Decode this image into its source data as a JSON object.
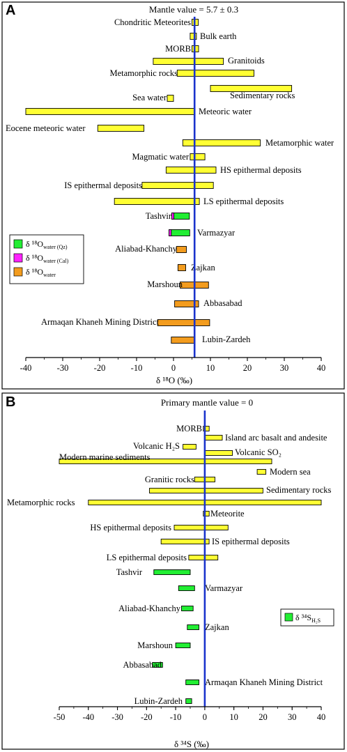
{
  "colors": {
    "literature": "#ffff33",
    "quartz": "#22ee33",
    "calcite": "#ff22ff",
    "water": "#f39c1e",
    "mantle_line": "#1a33cc"
  },
  "chart_data": [
    {
      "id": "A",
      "type": "bar",
      "orientation": "horizontal-range",
      "panel_label": "A",
      "title": "Mantle value = 5.7 ± 0.3",
      "xlabel": "δ ¹⁸O (‰)",
      "xlim": [
        -40,
        40
      ],
      "xticks": [
        -40,
        -30,
        -20,
        -10,
        0,
        10,
        20,
        30,
        40
      ],
      "reference_line": 5.7,
      "legend_position": "left",
      "legend": [
        {
          "key": "quartz",
          "base": "δ ¹⁸O",
          "sub": "water (Qz)"
        },
        {
          "key": "calcite",
          "base": "δ ¹⁸O",
          "sub": "water (Cal)"
        },
        {
          "key": "water",
          "base": "δ ¹⁸O",
          "sub": "water"
        }
      ],
      "series": [
        {
          "name": "Chondritic Meteorites",
          "key": "literature",
          "min": 5.0,
          "max": 6.7
        },
        {
          "name": "Bulk earth",
          "key": "literature",
          "min": 4.5,
          "max": 6.2
        },
        {
          "name": "MORB",
          "key": "literature",
          "min": 5.0,
          "max": 6.8
        },
        {
          "name": "Granitoids",
          "key": "literature",
          "min": -5.5,
          "max": 13.5
        },
        {
          "name": "Metamorphic rocks",
          "key": "literature",
          "min": 1.0,
          "max": 21.8
        },
        {
          "name": "Sedimentary rocks",
          "key": "literature",
          "min": 10.0,
          "max": 32.0
        },
        {
          "name": "Sea water",
          "key": "literature",
          "min": -1.7,
          "max": 0.0
        },
        {
          "name": "Meteoric water",
          "key": "literature",
          "min": -40.0,
          "max": 5.7
        },
        {
          "name": "Eocene meteoric water",
          "key": "literature",
          "min": -20.5,
          "max": -8.0
        },
        {
          "name": "Metamorphic water",
          "key": "literature",
          "min": 2.5,
          "max": 23.5
        },
        {
          "name": "Magmatic water",
          "key": "literature",
          "min": 4.5,
          "max": 8.5
        },
        {
          "name": "HS epithermal deposits",
          "key": "literature",
          "min": -2.0,
          "max": 11.5
        },
        {
          "name": "IS epithermal deposits",
          "key": "literature",
          "min": -8.5,
          "max": 10.8
        },
        {
          "name": "LS epithermal deposits",
          "key": "literature",
          "min": -16.0,
          "max": 7.0
        },
        {
          "name": "Tashvir",
          "key": "quartz",
          "min": -0.5,
          "max": 4.3,
          "cal_min": -0.5,
          "cal_max": 0.1
        },
        {
          "name": "Varmazyar",
          "key": "quartz",
          "min": -1.2,
          "max": 4.4,
          "cal_min": -1.2,
          "cal_max": -0.6
        },
        {
          "name": "Aliabad-Khanchy",
          "key": "water",
          "min": 0.8,
          "max": 3.5
        },
        {
          "name": "Zajkan",
          "key": "water",
          "min": 1.2,
          "max": 3.3
        },
        {
          "name": "Marshoun",
          "key": "water",
          "min": 1.8,
          "max": 9.5
        },
        {
          "name": "Abbasabad",
          "key": "water",
          "min": 0.3,
          "max": 6.8
        },
        {
          "name": "Armaqan Khaneh Mining District",
          "key": "water",
          "min": -4.3,
          "max": 9.8
        },
        {
          "name": "Lubin-Zardeh",
          "key": "water",
          "min": -0.6,
          "max": 5.7
        }
      ]
    },
    {
      "id": "B",
      "type": "bar",
      "orientation": "horizontal-range",
      "panel_label": "B",
      "title": "Primary mantle value = 0",
      "xlabel": "δ ³⁴S (‰)",
      "xlim": [
        -50,
        40
      ],
      "xticks": [
        -50,
        -40,
        -30,
        -20,
        -10,
        0,
        10,
        20,
        30,
        40
      ],
      "reference_line": 0,
      "legend_position": "right",
      "legend": [
        {
          "key": "quartz",
          "base": "δ ³⁴S",
          "sub": "H₂S"
        }
      ],
      "series": [
        {
          "name": "MORB",
          "key": "literature",
          "min": -0.5,
          "max": 1.5
        },
        {
          "name": "Island arc basalt and andesite",
          "key": "literature",
          "min": 0.0,
          "max": 6.0
        },
        {
          "name": "Volcanic H₂S",
          "key": "literature",
          "min": -7.5,
          "max": -3.0
        },
        {
          "name": "Volcanic SO₂",
          "key": "literature",
          "min": 0.0,
          "max": 9.5
        },
        {
          "name": "Modern marine sediments",
          "key": "literature",
          "min": -50.0,
          "max": 23.0
        },
        {
          "name": "Modern sea",
          "key": "literature",
          "min": 18.0,
          "max": 21.0
        },
        {
          "name": "Granitic rocks",
          "key": "literature",
          "min": -3.5,
          "max": 3.5
        },
        {
          "name": "Sedimentary rocks",
          "key": "literature",
          "min": -19.0,
          "max": 20.0
        },
        {
          "name": "Metamorphic rocks",
          "key": "literature",
          "min": -40.0,
          "max": 40.0
        },
        {
          "name": "Meteorite",
          "key": "literature",
          "min": -0.5,
          "max": 1.5
        },
        {
          "name": "HS epithermal deposits",
          "key": "literature",
          "min": -10.5,
          "max": 8.0
        },
        {
          "name": "IS epithermal deposits",
          "key": "literature",
          "min": -15.0,
          "max": 1.5
        },
        {
          "name": "LS epithermal deposits",
          "key": "literature",
          "min": -5.5,
          "max": 4.5
        },
        {
          "name": "Tashvir",
          "key": "quartz",
          "min": -17.5,
          "max": -5.0
        },
        {
          "name": "Varmazyar",
          "key": "quartz",
          "min": -9.0,
          "max": -3.5
        },
        {
          "name": "Aliabad-Khanchy",
          "key": "quartz",
          "min": -8.0,
          "max": -4.0
        },
        {
          "name": "Zajkan",
          "key": "quartz",
          "min": -6.0,
          "max": -2.0
        },
        {
          "name": "Marshoun",
          "key": "quartz",
          "min": -10.0,
          "max": -5.0
        },
        {
          "name": "Abbasabad",
          "key": "quartz",
          "min": -18.0,
          "max": -14.5
        },
        {
          "name": "Armaqan Khaneh Mining District",
          "key": "quartz",
          "min": -6.5,
          "max": -2.0
        },
        {
          "name": "Lubin-Zardeh",
          "key": "quartz",
          "min": -6.5,
          "max": -4.5
        }
      ]
    }
  ]
}
